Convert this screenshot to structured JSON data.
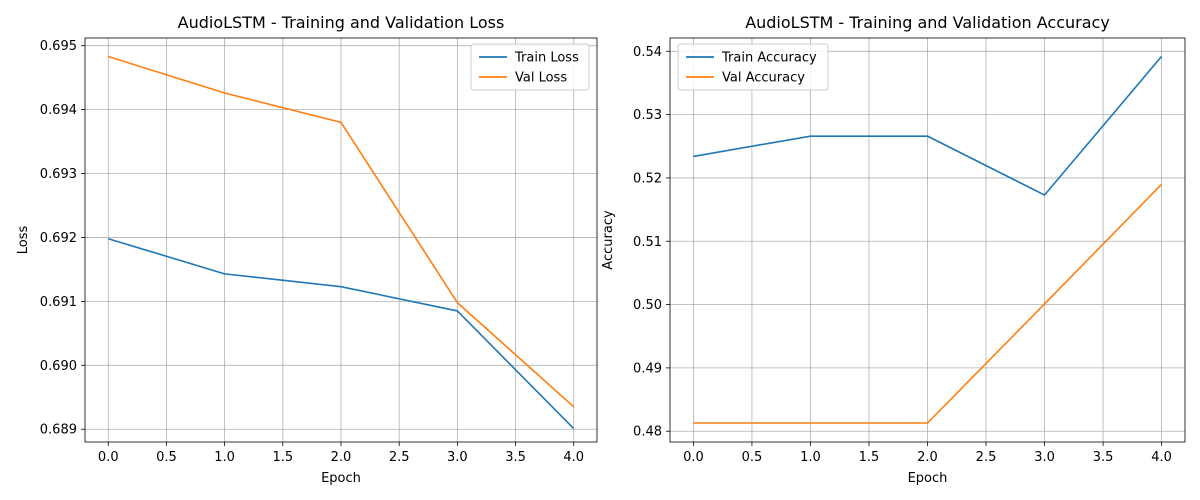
{
  "chart_data": [
    {
      "type": "line",
      "title": "AudioLSTM - Training and Validation Loss",
      "xlabel": "Epoch",
      "ylabel": "Loss",
      "x": [
        0,
        1,
        2,
        3,
        4
      ],
      "xlim": [
        -0.2,
        4.2
      ],
      "ylim": [
        0.6888,
        0.69512
      ],
      "xticks": [
        "0.0",
        "0.5",
        "1.0",
        "1.5",
        "2.0",
        "2.5",
        "3.0",
        "3.5",
        "4.0"
      ],
      "xtick_values": [
        0,
        0.5,
        1,
        1.5,
        2,
        2.5,
        3,
        3.5,
        4
      ],
      "yticks": [
        "0.689",
        "0.690",
        "0.691",
        "0.692",
        "0.693",
        "0.694",
        "0.695"
      ],
      "ytick_values": [
        0.689,
        0.69,
        0.691,
        0.692,
        0.693,
        0.694,
        0.695
      ],
      "grid": true,
      "legend_position": "top-right",
      "series": [
        {
          "name": "Train Loss",
          "color": "#1f77b4",
          "values": [
            0.69198,
            0.69143,
            0.69123,
            0.69085,
            0.68901
          ]
        },
        {
          "name": "Val Loss",
          "color": "#ff7f0e",
          "values": [
            0.69483,
            0.69426,
            0.6938,
            0.69098,
            0.68935
          ]
        }
      ]
    },
    {
      "type": "line",
      "title": "AudioLSTM - Training and Validation Accuracy",
      "xlabel": "Epoch",
      "ylabel": "Accuracy",
      "x": [
        0,
        1,
        2,
        3,
        4
      ],
      "xlim": [
        -0.2,
        4.2
      ],
      "ylim": [
        0.4783,
        0.5421
      ],
      "xticks": [
        "0.0",
        "0.5",
        "1.0",
        "1.5",
        "2.0",
        "2.5",
        "3.0",
        "3.5",
        "4.0"
      ],
      "xtick_values": [
        0,
        0.5,
        1,
        1.5,
        2,
        2.5,
        3,
        3.5,
        4
      ],
      "yticks": [
        "0.48",
        "0.49",
        "0.50",
        "0.51",
        "0.52",
        "0.53",
        "0.54"
      ],
      "ytick_values": [
        0.48,
        0.49,
        0.5,
        0.51,
        0.52,
        0.53,
        0.54
      ],
      "grid": true,
      "legend_position": "top-left",
      "series": [
        {
          "name": "Train Accuracy",
          "color": "#1f77b4",
          "values": [
            0.5234,
            0.5266,
            0.5266,
            0.5173,
            0.5392
          ]
        },
        {
          "name": "Val Accuracy",
          "color": "#ff7f0e",
          "values": [
            0.4813,
            0.4813,
            0.4813,
            0.5001,
            0.519
          ]
        }
      ]
    }
  ]
}
